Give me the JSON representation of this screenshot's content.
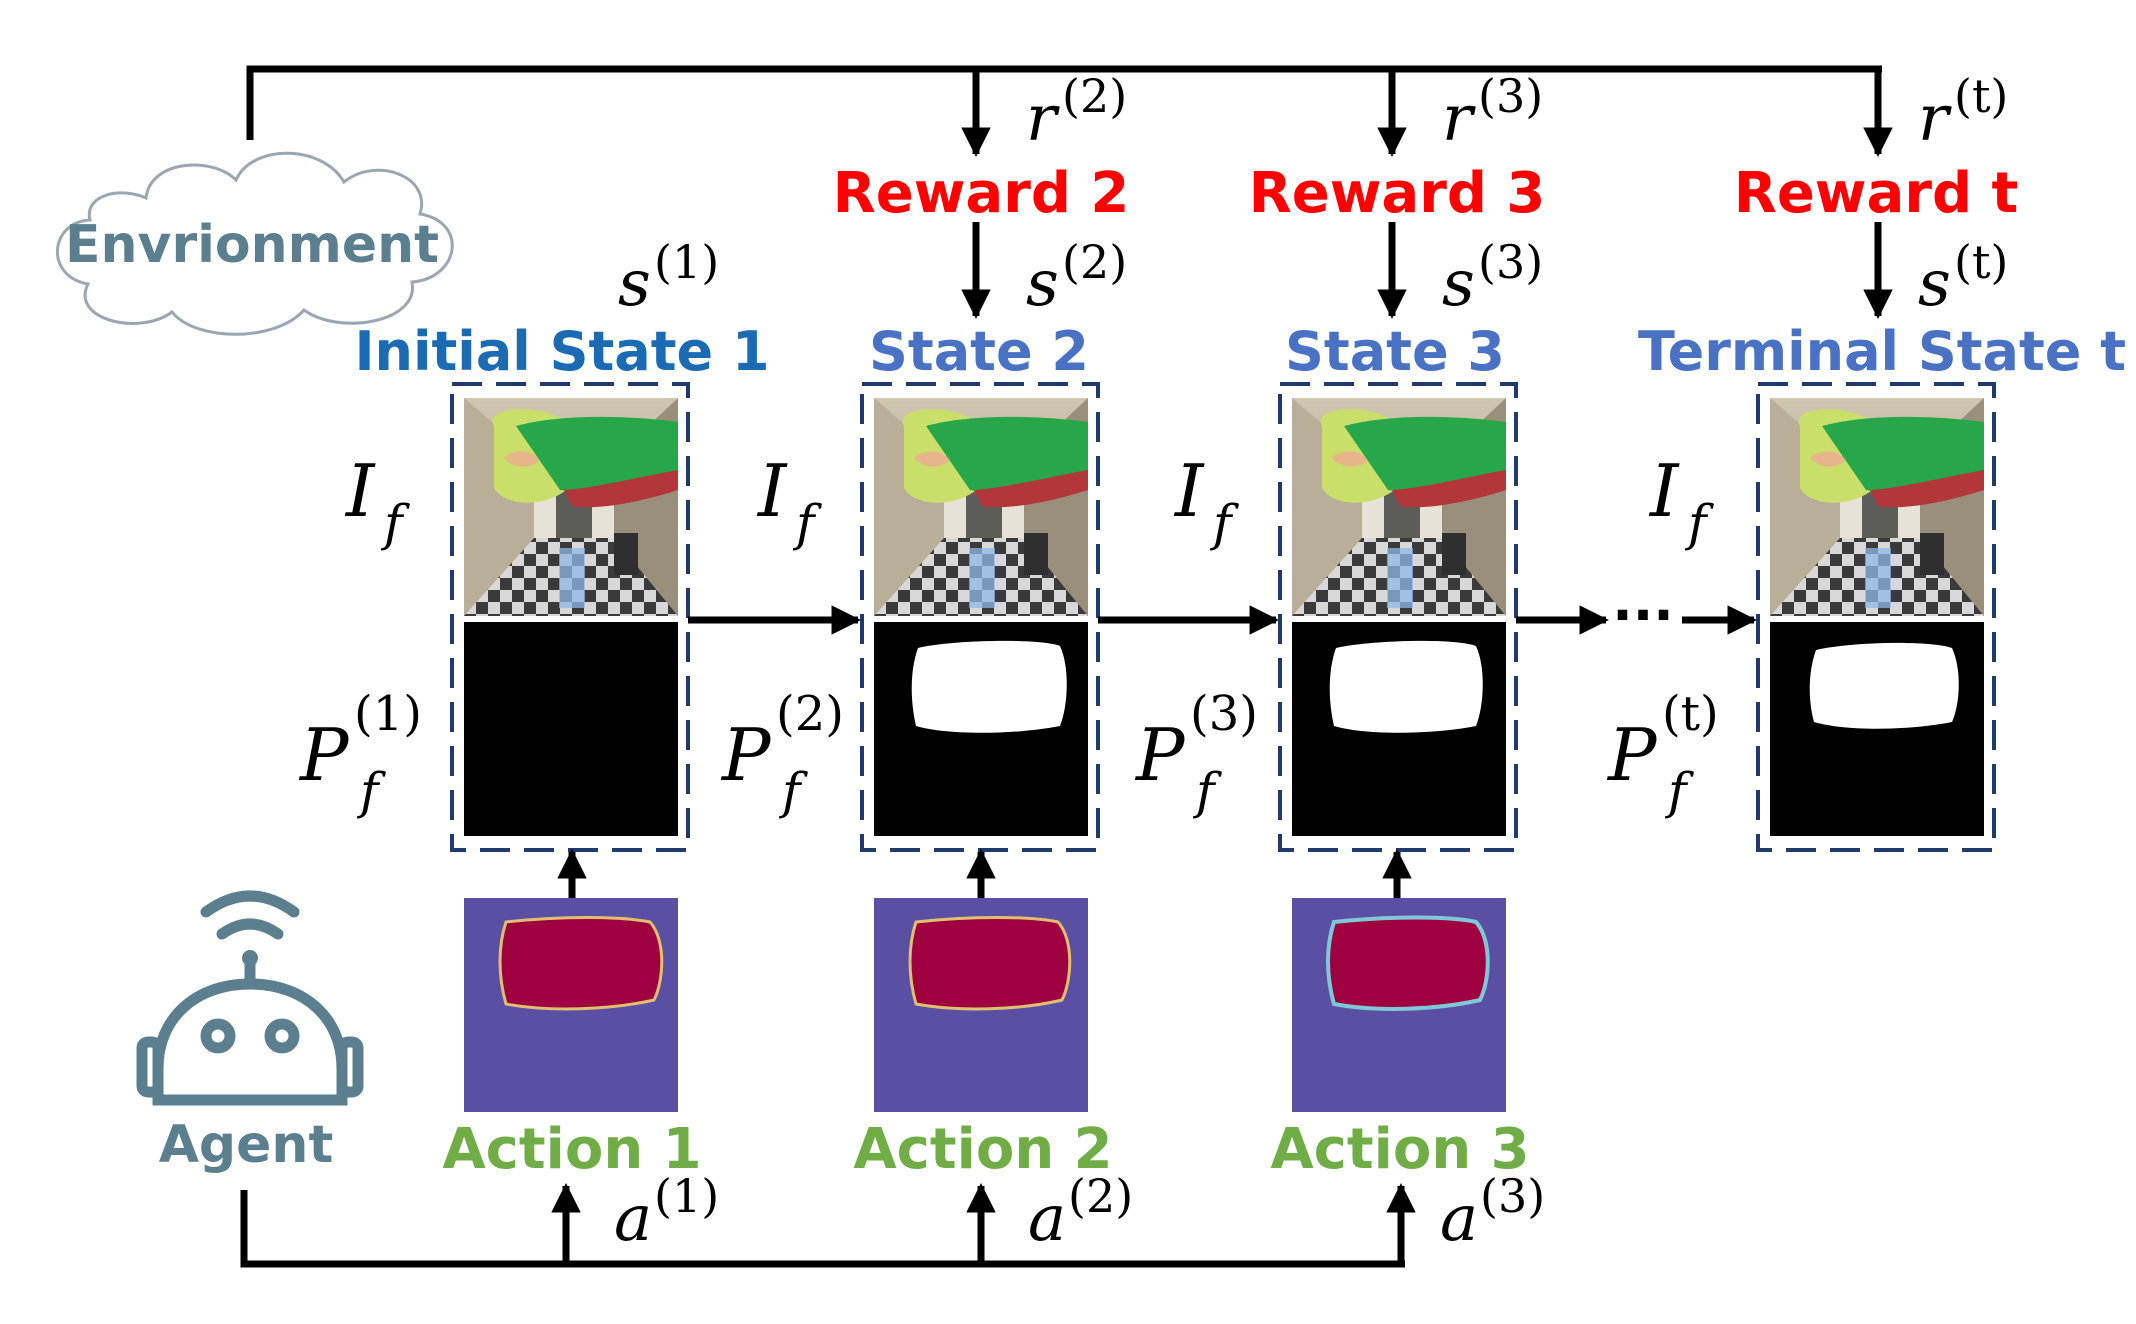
{
  "environment": {
    "label": "Envrionment"
  },
  "agent": {
    "label": "Agent"
  },
  "states": [
    {
      "title": "Initial State 1",
      "title_color": "#1a6bb3",
      "s_sup": "(1)",
      "p_sup": "(1)",
      "image": "I",
      "subscript": "f"
    },
    {
      "title": "State 2",
      "title_color": "#4a72c4",
      "s_sup": "(2)",
      "p_sup": "(2)",
      "image": "I",
      "subscript": "f"
    },
    {
      "title": "State 3",
      "title_color": "#4a72c4",
      "s_sup": "(3)",
      "p_sup": "(3)",
      "image": "I",
      "subscript": "f"
    },
    {
      "title": "Terminal State t",
      "title_color": "#4a72c4",
      "s_sup": "(t)",
      "p_sup": "(t)",
      "image": "I",
      "subscript": "f"
    }
  ],
  "rewards": [
    {
      "label": "Reward 2",
      "r_sup": "(2)"
    },
    {
      "label": "Reward 3",
      "r_sup": "(3)"
    },
    {
      "label": "Reward t",
      "r_sup": "(t)"
    }
  ],
  "actions": [
    {
      "label": "Action 1",
      "a_sup": "(1)"
    },
    {
      "label": "Action 2",
      "a_sup": "(2)"
    },
    {
      "label": "Action 3",
      "a_sup": "(3)"
    }
  ],
  "symbols": {
    "s": "s",
    "r": "r",
    "a": "a",
    "P": "P",
    "ellipsis": "···"
  },
  "colors": {
    "reward": "#ff0000",
    "action": "#70ad47",
    "agent": "#5b7f8f",
    "box": "#1f3a6e",
    "action_bg": "#5b4fa3",
    "action_fill": "#9e0040"
  }
}
